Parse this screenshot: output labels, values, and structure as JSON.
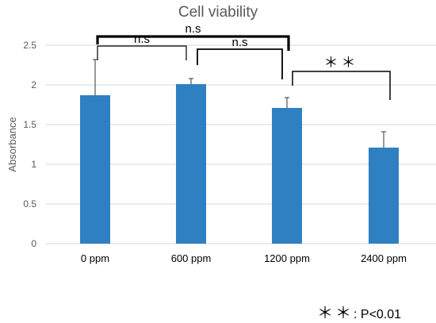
{
  "chart_data": {
    "type": "bar",
    "title": "Cell viability",
    "xlabel": "",
    "ylabel": "Absorbance",
    "ylim": [
      0,
      2.5
    ],
    "yticks": [
      "0",
      "0.5",
      "1",
      "1.5",
      "2",
      "2.5"
    ],
    "categories": [
      "0 ppm",
      "600 ppm",
      "1200 ppm",
      "2400 ppm"
    ],
    "values": [
      1.87,
      2.01,
      1.71,
      1.21
    ],
    "errors": [
      0.45,
      0.07,
      0.13,
      0.2
    ],
    "color": "#2e80c3",
    "grid": true,
    "significance": [
      {
        "from": 0,
        "to": 1,
        "label": "n.s"
      },
      {
        "from": 1,
        "to": 2,
        "label": "n.s"
      },
      {
        "from": 0,
        "to": 2,
        "label": "n.s"
      },
      {
        "from": 2,
        "to": 3,
        "label": "＊＊"
      }
    ]
  },
  "footnote": {
    "stars": "＊＊",
    "text": ": P<0.01"
  }
}
